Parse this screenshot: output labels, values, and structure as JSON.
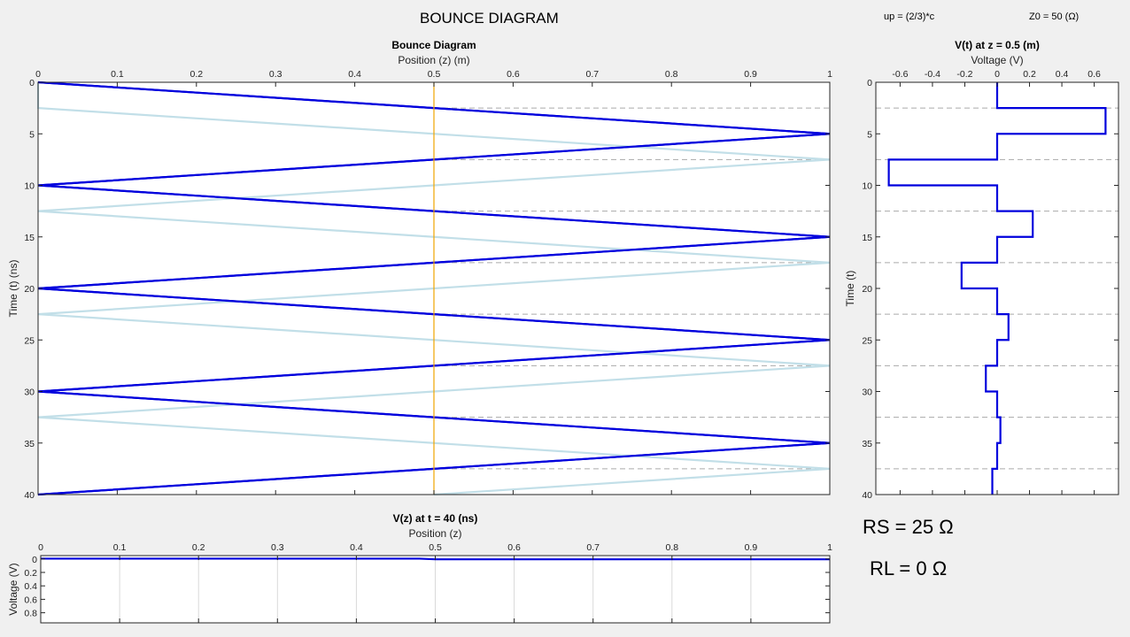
{
  "header": {
    "title": "BOUNCE DIAGRAM",
    "up_label": "up = (2/3)*c",
    "z0_label": "Z0 = 50 (Ω)"
  },
  "params": {
    "rs_label": "RS = 25 Ω",
    "rl_label": "RL = 0 Ω"
  },
  "colors": {
    "incident": "#0000dd",
    "reflected": "#c2dfe8",
    "probe": "#f0a500",
    "grid": "#d9d9d9",
    "dashed": "#aaaaaa"
  },
  "chart_data": [
    {
      "type": "line",
      "name": "bounce",
      "title": "Bounce Diagram",
      "xlabel": "Position (z) (m)",
      "ylabel": "Time (t) (ns)",
      "xlim": [
        0,
        1
      ],
      "ylim": [
        0,
        40
      ],
      "y_reversed": true,
      "x_axis_position": "top",
      "xticks": [
        0,
        0.1,
        0.2,
        0.3,
        0.4,
        0.5,
        0.6,
        0.7,
        0.8,
        0.9,
        1
      ],
      "yticks": [
        0,
        5,
        10,
        15,
        20,
        25,
        30,
        35,
        40
      ],
      "probe_z": 0.5,
      "series": [
        {
          "style": "dark",
          "x": [
            0,
            1,
            0,
            1,
            0,
            1,
            0,
            1,
            0
          ],
          "y": [
            0,
            5,
            10,
            15,
            20,
            25,
            30,
            35,
            40
          ]
        },
        {
          "style": "light",
          "x": [
            0,
            0,
            1,
            0,
            1,
            0,
            1,
            0,
            1,
            0.5
          ],
          "y": [
            0,
            2.5,
            7.5,
            12.5,
            17.5,
            22.5,
            27.5,
            32.5,
            37.5,
            40
          ]
        }
      ]
    },
    {
      "type": "line",
      "name": "vt",
      "title": "V(t) at z = 0.5 (m)",
      "xlabel": "Voltage (V)",
      "ylabel": "Time (t)",
      "xlim": [
        -0.75,
        0.75
      ],
      "ylim": [
        0,
        40
      ],
      "y_reversed": true,
      "x_axis_position": "top",
      "xticks": [
        -0.6,
        -0.4,
        -0.2,
        0,
        0.2,
        0.4,
        0.6
      ],
      "xticklabels": [
        "-0.6",
        "-0.4",
        "-0.2",
        "0",
        "0.2",
        "0.4",
        "0.6"
      ],
      "yticks": [
        0,
        5,
        10,
        15,
        20,
        25,
        30,
        35,
        40
      ],
      "dashed_times": [
        2.5,
        7.5,
        12.5,
        17.5,
        22.5,
        27.5,
        32.5,
        37.5
      ],
      "series": [
        {
          "x": [
            0,
            0,
            0.67,
            0.67,
            0,
            0,
            -0.67,
            -0.67,
            0,
            0,
            0.22,
            0.22,
            0,
            0,
            -0.22,
            -0.22,
            0,
            0,
            0.07,
            0.07,
            0,
            0,
            -0.07,
            -0.07,
            0,
            0,
            0.02,
            0.02,
            0,
            0,
            -0.03,
            -0.03
          ],
          "y": [
            0,
            2.5,
            2.5,
            5,
            5,
            7.5,
            7.5,
            10,
            10,
            12.5,
            12.5,
            15,
            15,
            17.5,
            17.5,
            20,
            20,
            22.5,
            22.5,
            25,
            25,
            27.5,
            27.5,
            30,
            30,
            32.5,
            32.5,
            35,
            35,
            37.5,
            37.5,
            40
          ]
        }
      ]
    },
    {
      "type": "line",
      "name": "vz",
      "title": "V(z) at t = 40 (ns)",
      "xlabel": "Position (z)",
      "ylabel": "Voltage (V)",
      "xlim": [
        0,
        1
      ],
      "ylim": [
        -0.05,
        0.95
      ],
      "y_reversed": true,
      "x_axis_position": "top",
      "xticks": [
        0,
        0.1,
        0.2,
        0.3,
        0.4,
        0.5,
        0.6,
        0.7,
        0.8,
        0.9,
        1
      ],
      "yticks": [
        0,
        0.2,
        0.4,
        0.6,
        0.8
      ],
      "yticklabels": [
        "0",
        "0.2",
        "0.4",
        "0.6",
        "0.8"
      ],
      "series": [
        {
          "x": [
            0,
            0.48,
            0.5,
            1
          ],
          "y": [
            -0.005,
            -0.005,
            0.005,
            0.005
          ]
        }
      ]
    }
  ]
}
